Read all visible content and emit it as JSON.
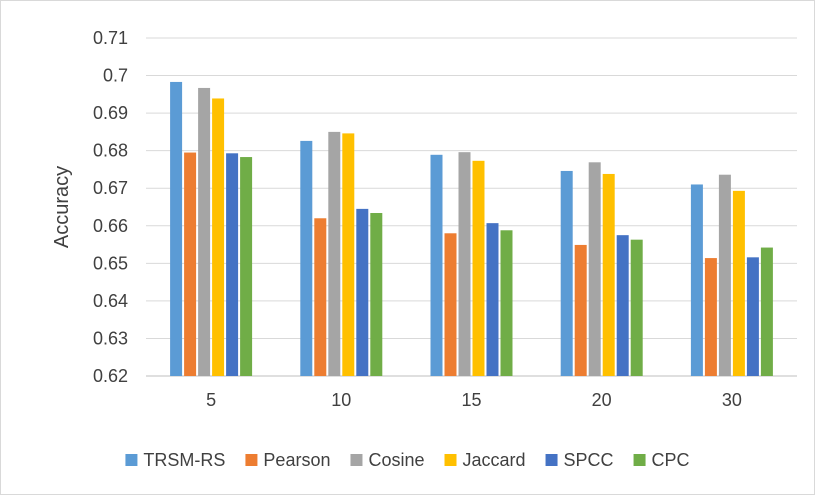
{
  "chart_data": {
    "type": "bar",
    "title": "",
    "xlabel": "",
    "ylabel": "Accuracy",
    "ylim": [
      0.62,
      0.71
    ],
    "yticks": [
      0.62,
      0.63,
      0.64,
      0.65,
      0.66,
      0.67,
      0.68,
      0.69,
      0.7,
      0.71
    ],
    "ytick_labels": [
      "0.62",
      "0.63",
      "0.64",
      "0.65",
      "0.66",
      "0.67",
      "0.68",
      "0.69",
      "0.7",
      "0.71"
    ],
    "grid": true,
    "legend": "bottom",
    "categories": [
      "5",
      "10",
      "15",
      "20",
      "30"
    ],
    "series": [
      {
        "name": "TRSM-RS",
        "color": "#5b9bd5",
        "values": [
          0.6983,
          0.6826,
          0.6789,
          0.6746,
          0.671
        ]
      },
      {
        "name": "Pearson",
        "color": "#ed7d31",
        "values": [
          0.6795,
          0.662,
          0.658,
          0.6549,
          0.6514
        ]
      },
      {
        "name": "Cosine",
        "color": "#a5a5a5",
        "values": [
          0.6967,
          0.685,
          0.6796,
          0.6769,
          0.6736
        ]
      },
      {
        "name": "Jaccard",
        "color": "#ffc000",
        "values": [
          0.6939,
          0.6846,
          0.6773,
          0.6738,
          0.6693
        ]
      },
      {
        "name": "SPCC",
        "color": "#4472c4",
        "values": [
          0.6793,
          0.6645,
          0.6607,
          0.6575,
          0.6516
        ]
      },
      {
        "name": "CPC",
        "color": "#70ad47",
        "values": [
          0.6783,
          0.6634,
          0.6588,
          0.6563,
          0.6542
        ]
      }
    ]
  }
}
